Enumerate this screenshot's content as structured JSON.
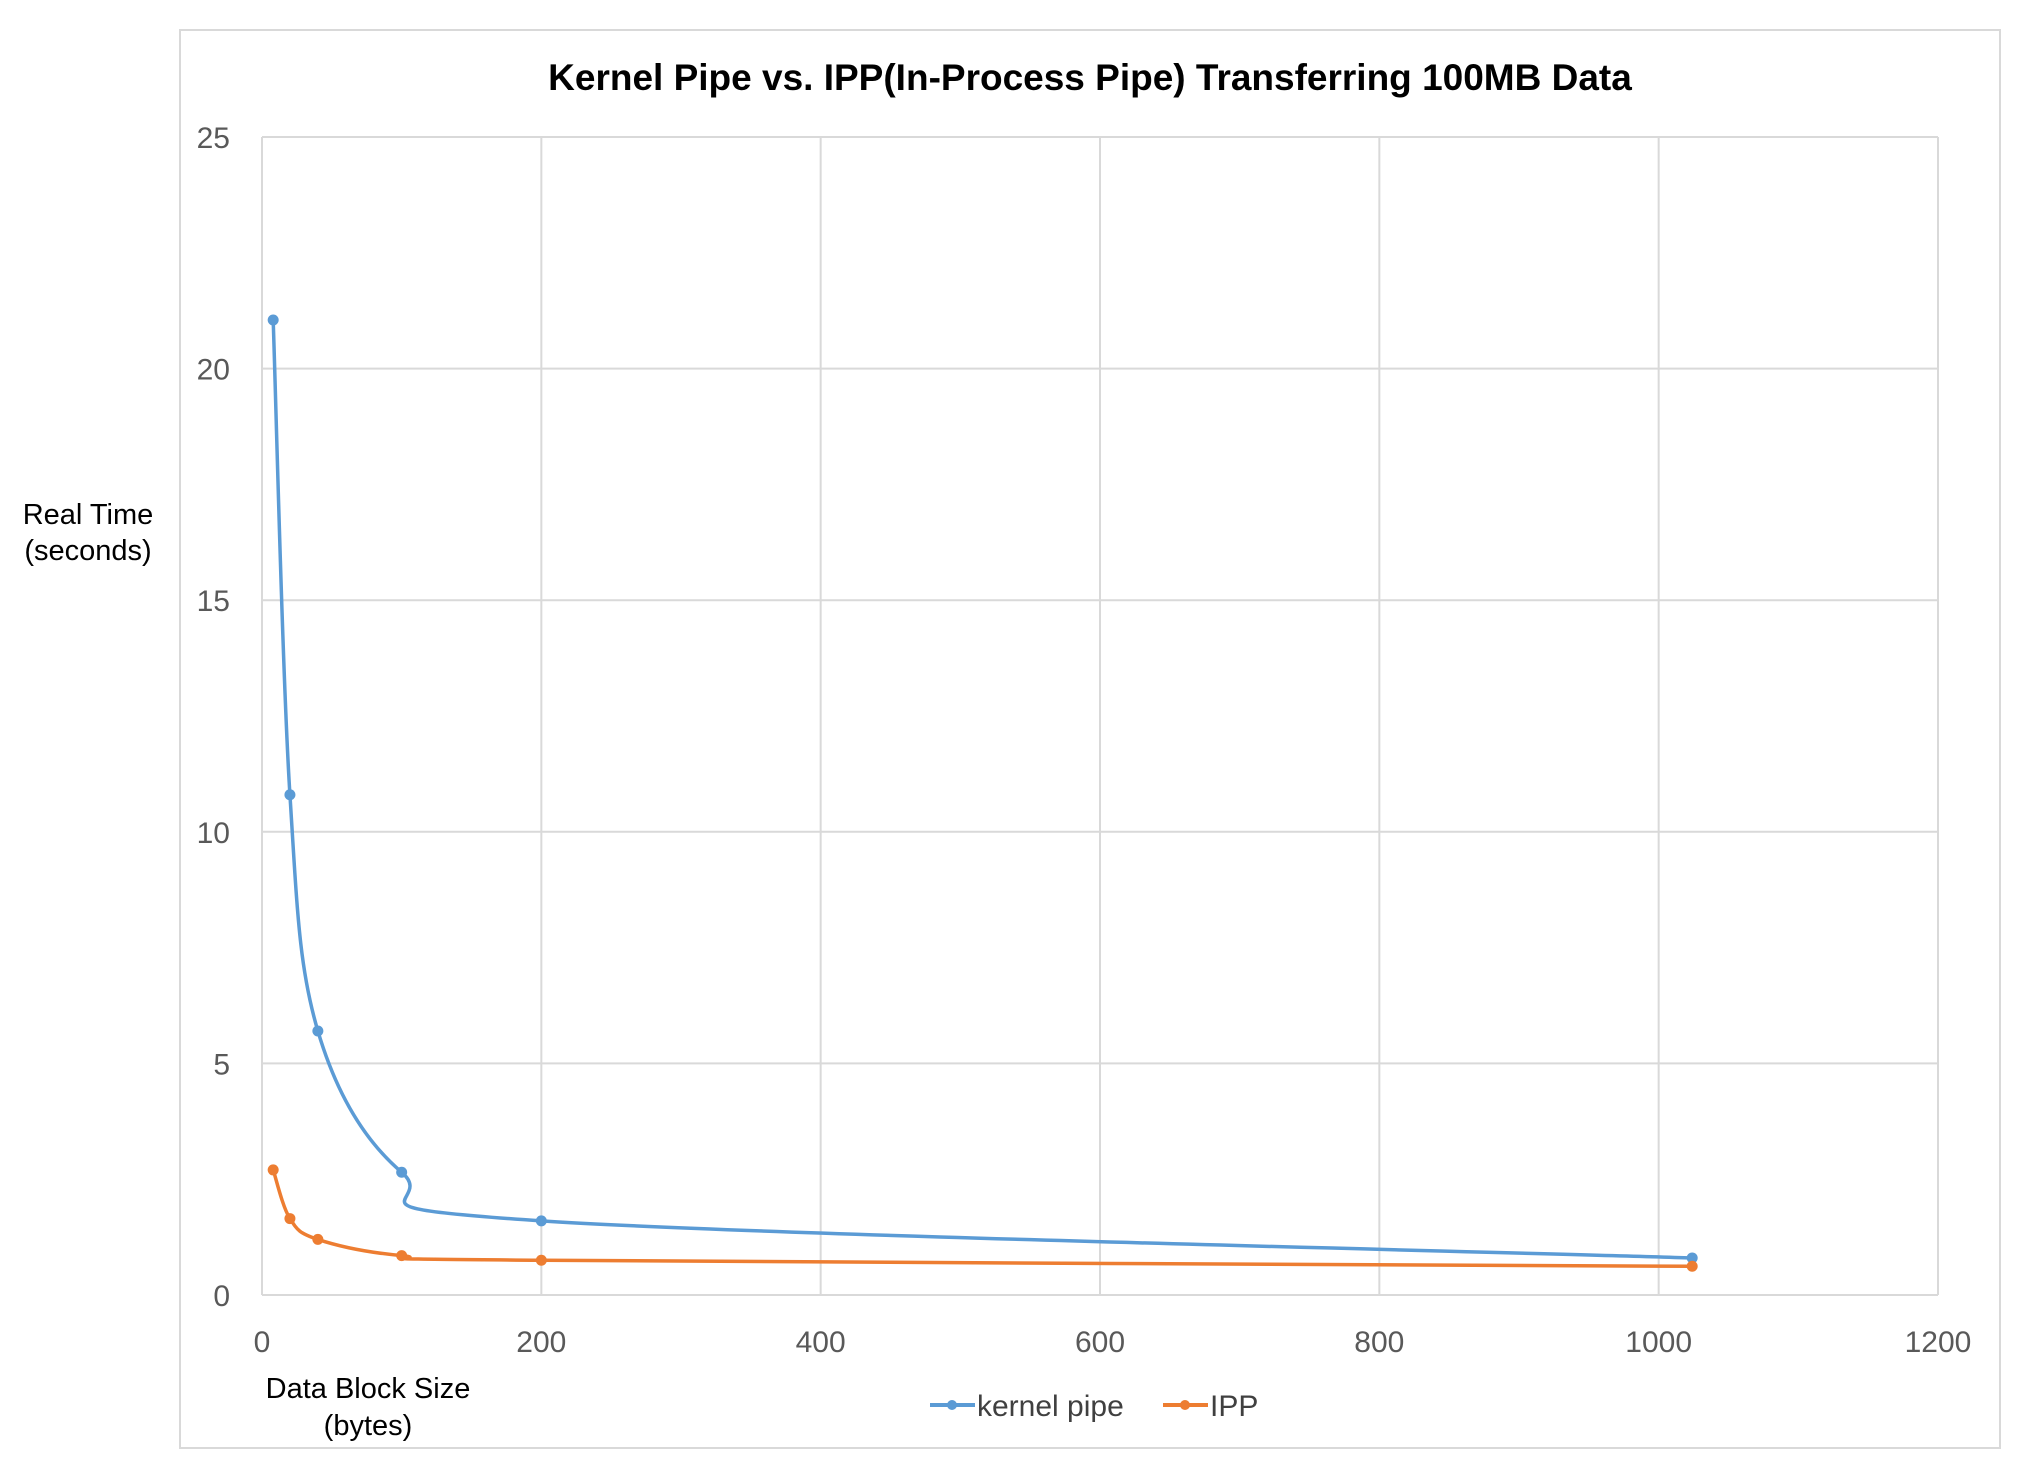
{
  "chart_data": {
    "type": "line",
    "title": "Kernel Pipe vs. IPP(In-Process Pipe) Transferring 100MB Data",
    "ylabel": [
      "Real Time",
      "(seconds)"
    ],
    "xlabel": [
      "Data Block Size",
      "(bytes)"
    ],
    "xlim": [
      0,
      1200
    ],
    "ylim": [
      0,
      25
    ],
    "xticks": [
      "0",
      "200",
      "400",
      "600",
      "800",
      "1000",
      "1200"
    ],
    "yticks": [
      "0",
      "5",
      "10",
      "15",
      "20",
      "25"
    ],
    "grid": true,
    "legend_position": "bottom",
    "series": [
      {
        "name": "kernel pipe",
        "color": "#5B9BD5",
        "x": [
          8,
          20,
          40,
          100,
          200,
          1024
        ],
        "y": [
          21.05,
          10.8,
          5.7,
          2.65,
          1.6,
          0.8
        ]
      },
      {
        "name": "IPP",
        "color": "#ED7D31",
        "x": [
          8,
          20,
          40,
          100,
          200,
          1024
        ],
        "y": [
          2.7,
          1.65,
          1.2,
          0.85,
          0.75,
          0.62
        ]
      }
    ]
  }
}
